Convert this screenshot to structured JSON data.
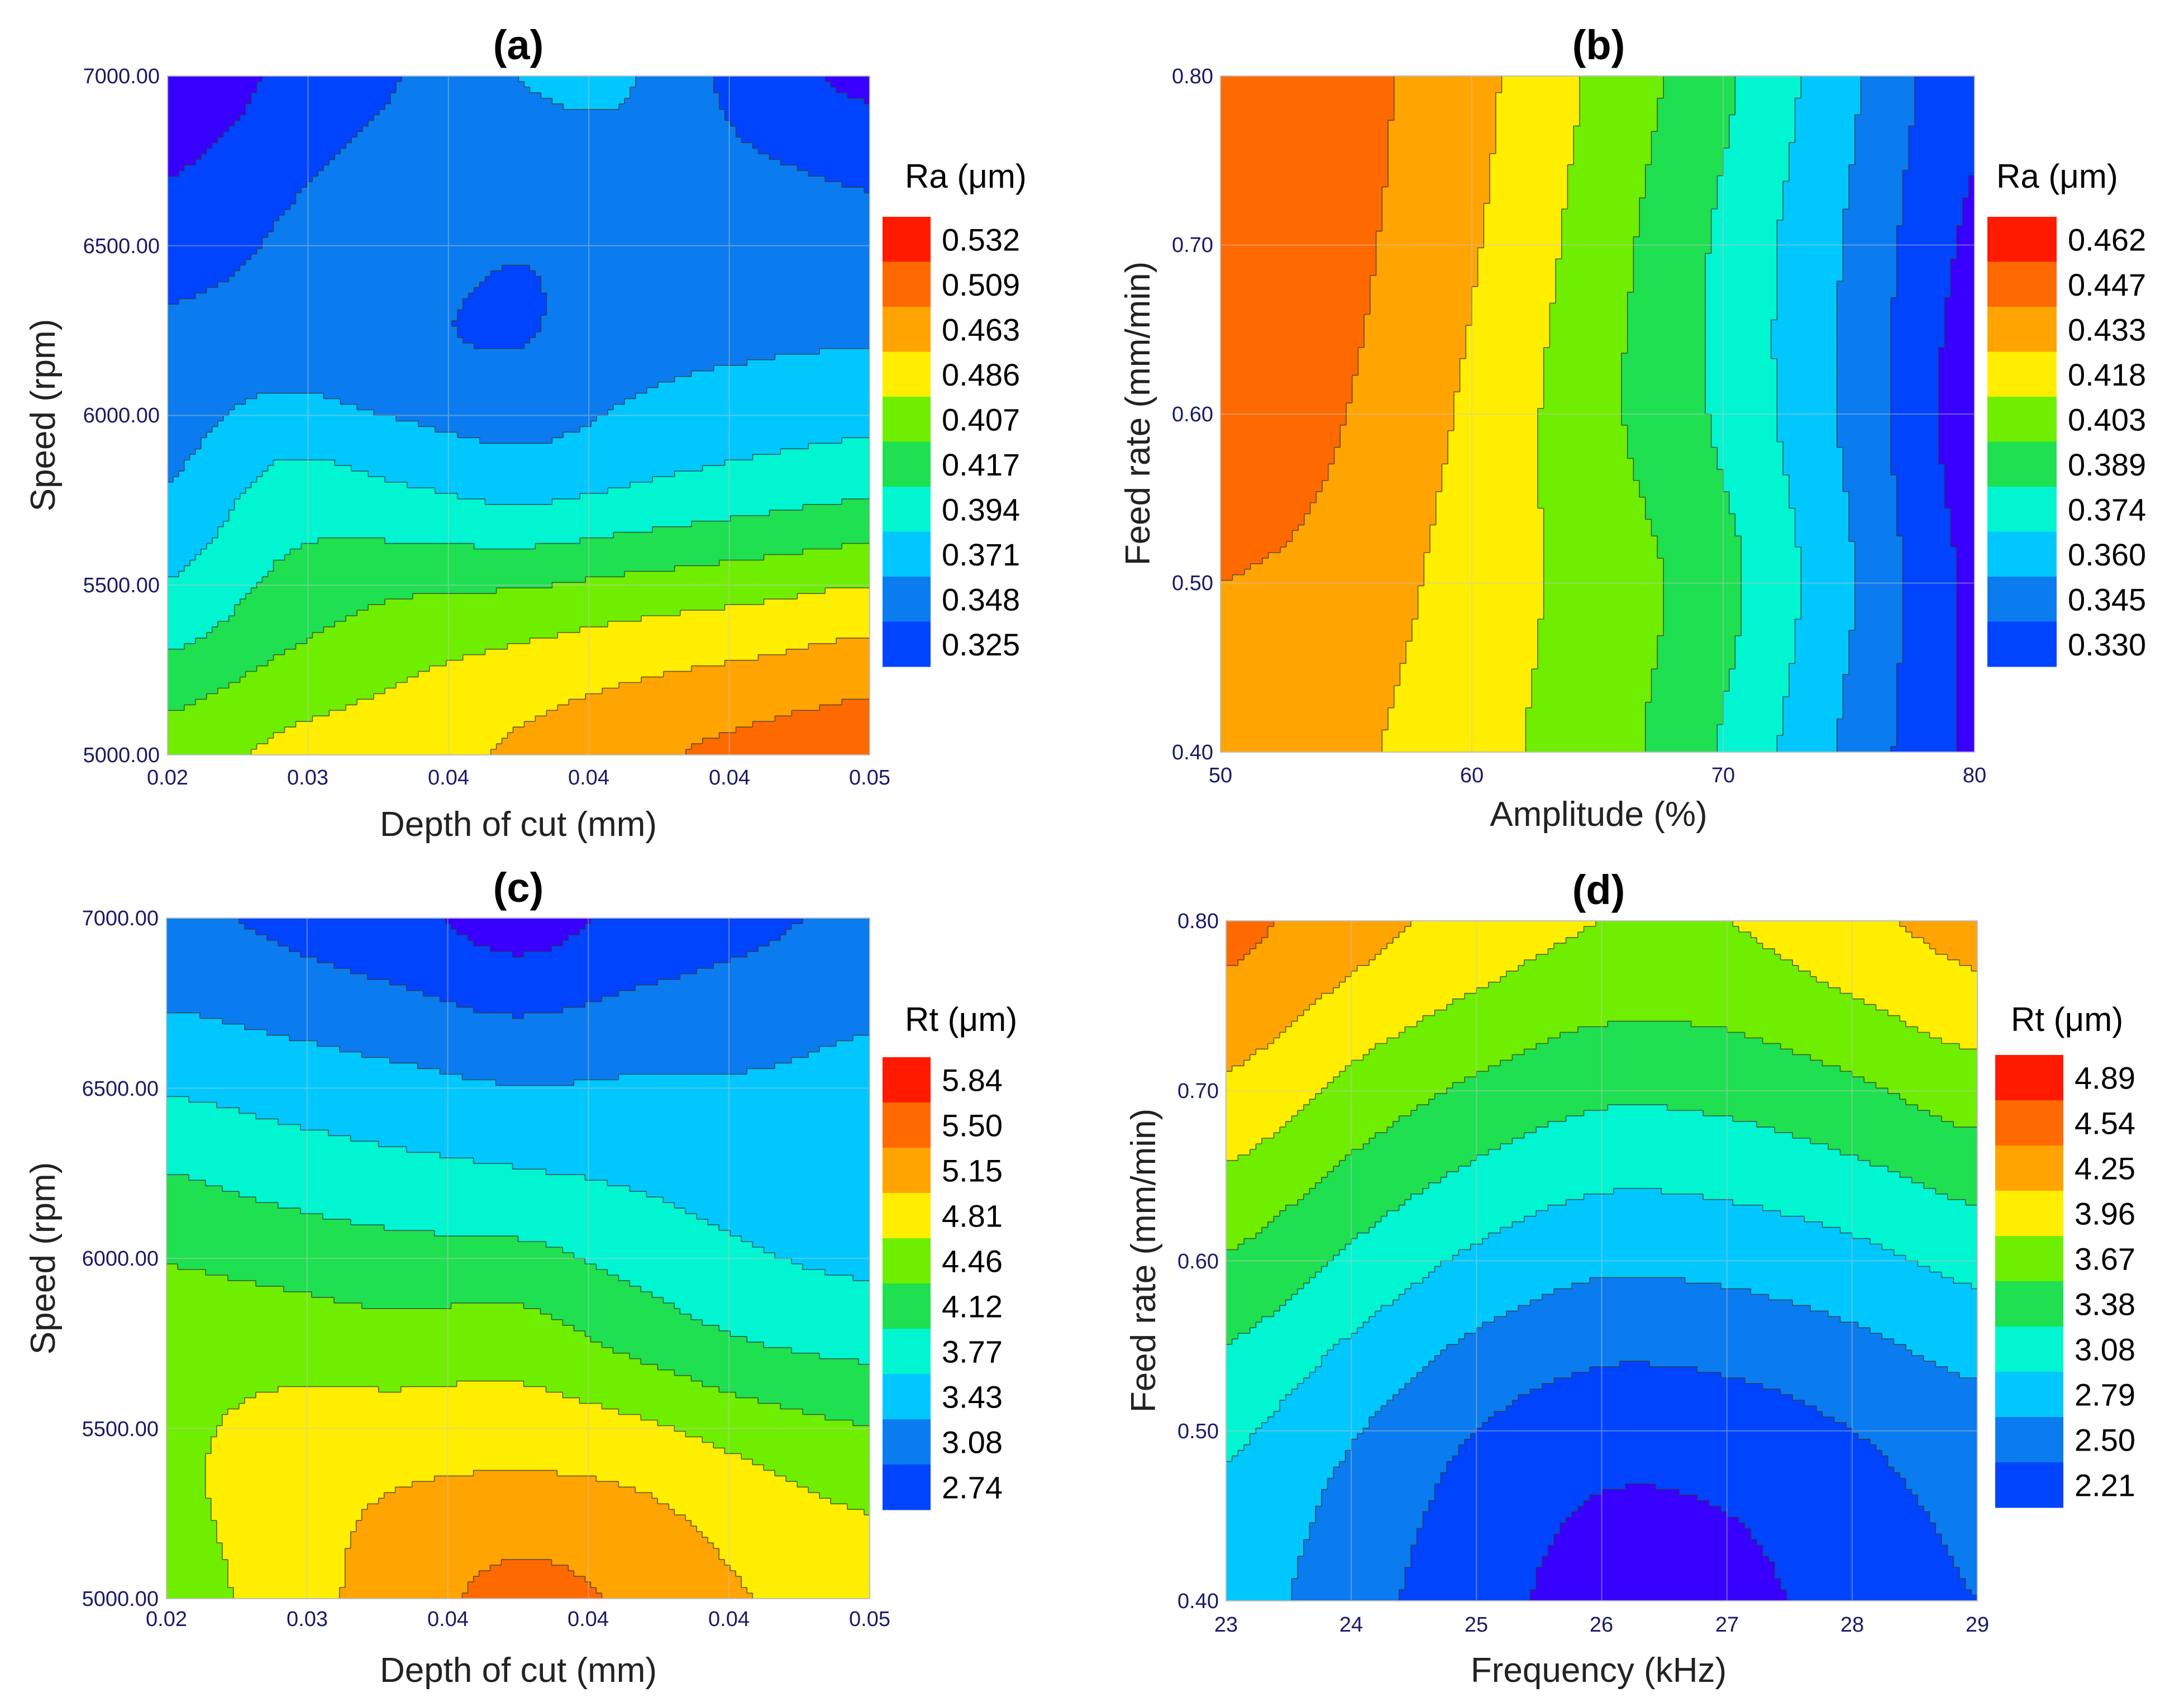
{
  "figure": {
    "colors": {
      "scale": [
        "#3700ff",
        "#0044ff",
        "#0a7cf0",
        "#00c8ff",
        "#00f5d0",
        "#1ee050",
        "#6fee00",
        "#ffee00",
        "#ffa400",
        "#ff6a00",
        "#ff1a00"
      ],
      "grid": "#c8c8c8",
      "contour_line": "#333333",
      "tick_text": "#1a1a66"
    }
  },
  "chart_data": [
    {
      "panel": "(a)",
      "type": "contour",
      "title": "(a)",
      "xlabel": "Depth of cut (mm)",
      "ylabel": "Speed (rpm)",
      "x_ticks": [
        "0.02",
        "0.03",
        "0.04",
        "0.04",
        "0.04",
        "0.05"
      ],
      "y_ticks": [
        "5000.00",
        "5500.00",
        "6000.00",
        "6500.00",
        "7000.00"
      ],
      "xlim": [
        0.02,
        0.05
      ],
      "ylim": [
        5000,
        7000
      ],
      "legend_title": "Ra (μm)",
      "legend_levels": [
        "0.532",
        "0.509",
        "0.463",
        "0.486",
        "0.407",
        "0.417",
        "0.394",
        "0.371",
        "0.348",
        "0.325"
      ],
      "field": {
        "cols": 7,
        "rows": 6,
        "y_from_top": true,
        "z": [
          [
            0.2,
            1.2,
            2.0,
            3.0,
            3.0,
            1.5,
            0.8
          ],
          [
            1.3,
            2.0,
            2.6,
            2.2,
            2.6,
            2.5,
            2.2
          ],
          [
            2.3,
            2.5,
            2.2,
            2.0,
            2.7,
            2.9,
            3.0
          ],
          [
            3.0,
            4.3,
            4.0,
            3.6,
            4.0,
            4.4,
            4.7
          ],
          [
            4.5,
            5.6,
            6.3,
            6.6,
            7.0,
            7.3,
            7.7
          ],
          [
            6.5,
            7.2,
            7.5,
            8.2,
            8.8,
            9.3,
            9.6
          ]
        ]
      }
    },
    {
      "panel": "(b)",
      "type": "contour",
      "title": "(b)",
      "xlabel": "Amplitude (%)",
      "ylabel": "Feed rate (mm/min)",
      "x_ticks": [
        "50",
        "60",
        "70",
        "80"
      ],
      "y_ticks": [
        "0.40",
        "0.50",
        "0.60",
        "0.70",
        "0.80"
      ],
      "xlim": [
        50,
        80
      ],
      "ylim": [
        0.4,
        0.8
      ],
      "legend_title": "Ra (μm)",
      "legend_levels": [
        "0.462",
        "0.447",
        "0.433",
        "0.418",
        "0.403",
        "0.389",
        "0.374",
        "0.360",
        "0.345",
        "0.330"
      ],
      "field": {
        "cols": 7,
        "rows": 5,
        "y_from_top": true,
        "z": [
          [
            9.5,
            9.3,
            8.3,
            6.8,
            5.2,
            3.2,
            1.2
          ],
          [
            9.4,
            9.2,
            8.1,
            6.5,
            4.8,
            2.9,
            0.8
          ],
          [
            9.2,
            9.0,
            7.8,
            6.3,
            4.8,
            2.8,
            0.5
          ],
          [
            9.0,
            8.7,
            7.5,
            6.6,
            5.3,
            3.1,
            0.8
          ],
          [
            8.5,
            8.2,
            7.3,
            6.5,
            4.9,
            2.8,
            0.8
          ]
        ]
      }
    },
    {
      "panel": "(c)",
      "type": "contour",
      "title": "(c)",
      "xlabel": "Depth of cut (mm)",
      "ylabel": "Speed (rpm)",
      "x_ticks": [
        "0.02",
        "0.03",
        "0.04",
        "0.04",
        "0.04",
        "0.05"
      ],
      "y_ticks": [
        "5000.00",
        "5500.00",
        "6000.00",
        "6500.00",
        "7000.00"
      ],
      "xlim": [
        0.02,
        0.05
      ],
      "ylim": [
        5000,
        7000
      ],
      "legend_title": "Rt (μm)",
      "legend_levels": [
        "5.84",
        "5.50",
        "5.15",
        "4.81",
        "4.46",
        "4.12",
        "3.77",
        "3.43",
        "3.08",
        "2.74"
      ],
      "field": {
        "cols": 7,
        "rows": 6,
        "y_from_top": true,
        "z": [
          [
            2.2,
            1.8,
            1.3,
            0.6,
            1.3,
            1.8,
            2.2
          ],
          [
            3.5,
            3.2,
            2.9,
            2.6,
            2.8,
            2.9,
            3.1
          ],
          [
            5.2,
            4.8,
            4.5,
            4.3,
            4.0,
            3.6,
            3.3
          ],
          [
            6.5,
            6.4,
            6.2,
            6.3,
            5.5,
            4.8,
            4.5
          ],
          [
            6.8,
            7.5,
            7.8,
            7.9,
            7.7,
            7.0,
            6.5
          ],
          [
            6.5,
            7.5,
            8.5,
            9.3,
            8.8,
            8.0,
            7.5
          ]
        ]
      }
    },
    {
      "panel": "(d)",
      "type": "contour",
      "title": "(d)",
      "xlabel": "Frequency (kHz)",
      "ylabel": "Feed rate (mm/min)",
      "x_ticks": [
        "23",
        "24",
        "25",
        "26",
        "27",
        "28",
        "29"
      ],
      "y_ticks": [
        "0.40",
        "0.50",
        "0.60",
        "0.70",
        "0.80"
      ],
      "xlim": [
        23,
        29
      ],
      "ylim": [
        0.4,
        0.8
      ],
      "legend_title": "Rt (μm)",
      "legend_levels": [
        "4.89",
        "4.54",
        "4.25",
        "3.96",
        "3.67",
        "3.38",
        "3.08",
        "2.79",
        "2.50",
        "2.21"
      ],
      "field": {
        "cols": 7,
        "rows": 5,
        "y_from_top": true,
        "z": [
          [
            9.3,
            8.4,
            7.6,
            7.0,
            7.0,
            7.7,
            8.4
          ],
          [
            7.8,
            6.7,
            5.8,
            5.2,
            5.3,
            5.8,
            6.5
          ],
          [
            5.9,
            4.8,
            3.8,
            3.2,
            3.3,
            3.7,
            4.3
          ],
          [
            4.2,
            3.1,
            2.0,
            1.4,
            1.5,
            2.0,
            2.6
          ],
          [
            3.5,
            2.4,
            1.4,
            0.6,
            0.7,
            1.4,
            2.0
          ]
        ]
      }
    }
  ]
}
